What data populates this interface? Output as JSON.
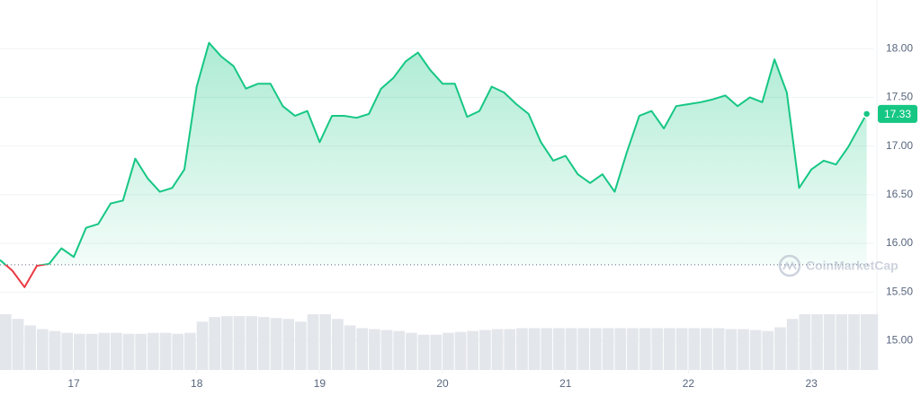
{
  "chart_data": {
    "type": "line",
    "x": [
      16.4,
      16.5,
      16.6,
      16.7,
      16.8,
      16.9,
      17.0,
      17.1,
      17.2,
      17.3,
      17.4,
      17.5,
      17.6,
      17.7,
      17.8,
      17.9,
      18.0,
      18.1,
      18.2,
      18.3,
      18.4,
      18.5,
      18.6,
      18.7,
      18.8,
      18.9,
      19.0,
      19.1,
      19.2,
      19.3,
      19.4,
      19.5,
      19.6,
      19.7,
      19.8,
      19.9,
      20.0,
      20.1,
      20.2,
      20.3,
      20.4,
      20.5,
      20.6,
      20.7,
      20.8,
      20.9,
      21.0,
      21.1,
      21.2,
      21.3,
      21.4,
      21.5,
      21.6,
      21.7,
      21.8,
      21.9,
      22.0,
      22.1,
      22.2,
      22.3,
      22.4,
      22.5,
      22.6,
      22.7,
      22.8,
      22.9,
      23.0,
      23.1,
      23.2,
      23.3,
      23.4,
      23.45
    ],
    "values": [
      15.83,
      15.72,
      15.55,
      15.77,
      15.79,
      15.95,
      15.86,
      16.16,
      16.2,
      16.41,
      16.44,
      16.87,
      16.67,
      16.53,
      16.57,
      16.76,
      17.61,
      18.06,
      17.92,
      17.82,
      17.59,
      17.64,
      17.64,
      17.41,
      17.31,
      17.36,
      17.04,
      17.31,
      17.31,
      17.29,
      17.33,
      17.59,
      17.7,
      17.87,
      17.96,
      17.78,
      17.64,
      17.64,
      17.3,
      17.36,
      17.61,
      17.55,
      17.43,
      17.33,
      17.04,
      16.85,
      16.9,
      16.71,
      16.62,
      16.71,
      16.53,
      16.94,
      17.31,
      17.36,
      17.18,
      17.41,
      17.43,
      17.45,
      17.48,
      17.52,
      17.41,
      17.5,
      17.45,
      17.89,
      17.55,
      16.57,
      16.76,
      16.85,
      16.81,
      16.99,
      17.22,
      17.33
    ],
    "volume": [
      60,
      55,
      48,
      44,
      42,
      40,
      39,
      39,
      40,
      40,
      39,
      39,
      40,
      40,
      39,
      40,
      52,
      57,
      58,
      58,
      58,
      57,
      56,
      55,
      52,
      60,
      60,
      55,
      48,
      45,
      44,
      43,
      42,
      40,
      38,
      38,
      40,
      41,
      42,
      43,
      44,
      44,
      45,
      45,
      45,
      45,
      45,
      45,
      45,
      45,
      45,
      45,
      45,
      45,
      45,
      45,
      45,
      45,
      45,
      44,
      44,
      43,
      42,
      46,
      55,
      60,
      60,
      60,
      60,
      60,
      60,
      60
    ],
    "color": "#16c784",
    "down_color": "#ea3943",
    "volume_color": "#e3e6eb",
    "baseline": 15.78,
    "current_price": 17.33,
    "xlim": [
      16.4,
      23.46
    ],
    "xticks": [
      17,
      18,
      19,
      20,
      21,
      22,
      23
    ],
    "ylim": [
      14.7,
      18.5
    ],
    "yticks": [
      {
        "value": 15,
        "label": "15.00"
      },
      {
        "value": 15.5,
        "label": "15.50"
      },
      {
        "value": 16,
        "label": "16.00"
      },
      {
        "value": 16.5,
        "label": "16.50"
      },
      {
        "value": 17,
        "label": "17.00"
      },
      {
        "value": 17.5,
        "label": "17.50"
      },
      {
        "value": 18,
        "label": "18.00"
      }
    ],
    "grid": true,
    "watermark": "CoinMarketCap"
  }
}
